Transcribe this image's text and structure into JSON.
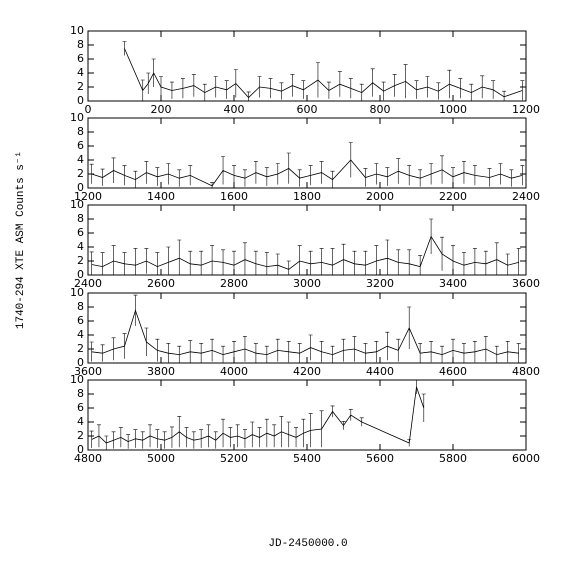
{
  "y_label": "1740-294 XTE ASM Counts s⁻¹",
  "x_label": "JD-2450000.0",
  "chart_data": [
    {
      "type": "line",
      "xlim": [
        0,
        1200
      ],
      "xticks": [
        0,
        200,
        400,
        600,
        800,
        1000,
        1200
      ],
      "ylim": [
        0,
        10
      ],
      "yticks": [
        0,
        2,
        4,
        6,
        8,
        10
      ],
      "series": [
        {
          "color": "#000000",
          "x": [
            100,
            150,
            165,
            180,
            200,
            230,
            260,
            290,
            320,
            350,
            380,
            405,
            440,
            470,
            500,
            530,
            560,
            590,
            630,
            660,
            690,
            720,
            750,
            780,
            810,
            840,
            870,
            900,
            930,
            960,
            990,
            1020,
            1050,
            1080,
            1110,
            1140,
            1190
          ],
          "values": [
            7.5,
            1.5,
            2.5,
            4,
            2,
            1.5,
            1.8,
            2.2,
            1.2,
            2,
            1.6,
            2.5,
            0.5,
            2,
            1.8,
            1.4,
            2.2,
            1.6,
            3,
            1.5,
            2.4,
            1.8,
            1.2,
            2.6,
            1.4,
            2.2,
            2.8,
            1.6,
            2,
            1.4,
            2.4,
            1.8,
            1.2,
            2,
            1.6,
            0.6,
            1.5
          ],
          "errors": [
            1,
            1.5,
            1.5,
            2,
            1.5,
            1.2,
            1.4,
            1.6,
            1.2,
            1.5,
            1.3,
            2,
            0.8,
            1.5,
            1.4,
            1.2,
            1.6,
            1.3,
            2.5,
            1.2,
            1.8,
            1.4,
            1.2,
            2,
            1.3,
            1.6,
            2.4,
            1.3,
            1.5,
            1.2,
            2,
            1.4,
            1.2,
            1.6,
            1.3,
            0.8,
            1.4
          ]
        }
      ]
    },
    {
      "type": "line",
      "xlim": [
        1200,
        2400
      ],
      "xticks": [
        1200,
        1400,
        1600,
        1800,
        2000,
        2200,
        2400
      ],
      "ylim": [
        0,
        10
      ],
      "yticks": [
        0,
        2,
        4,
        6,
        8,
        10
      ],
      "series": [
        {
          "color": "#000000",
          "x": [
            1210,
            1240,
            1270,
            1300,
            1330,
            1360,
            1390,
            1420,
            1450,
            1480,
            1540,
            1570,
            1600,
            1630,
            1660,
            1690,
            1720,
            1750,
            1780,
            1810,
            1840,
            1870,
            1920,
            1960,
            1990,
            2020,
            2050,
            2080,
            2110,
            2140,
            2170,
            2200,
            2230,
            2260,
            2300,
            2330,
            2360,
            2390
          ],
          "values": [
            2,
            1.5,
            2.5,
            1.8,
            1.2,
            2.2,
            1.6,
            2,
            1.4,
            1.8,
            0.3,
            2.5,
            1.8,
            1.4,
            2.2,
            1.6,
            2,
            2.8,
            1.4,
            1.8,
            2.2,
            1.2,
            4,
            1.5,
            2,
            1.6,
            2.4,
            1.8,
            1.4,
            2,
            2.6,
            1.6,
            2.2,
            1.8,
            1.5,
            2,
            1.4,
            1.8
          ],
          "errors": [
            1.4,
            1.2,
            1.8,
            1.4,
            1.2,
            1.6,
            1.3,
            1.5,
            1.2,
            1.4,
            0.5,
            2,
            1.4,
            1.2,
            1.6,
            1.3,
            1.5,
            2.2,
            1.2,
            1.4,
            1.6,
            1.2,
            2.5,
            1.3,
            1.5,
            1.3,
            1.8,
            1.4,
            1.2,
            1.5,
            2,
            1.3,
            1.6,
            1.4,
            1.3,
            1.5,
            1.2,
            1.4
          ]
        }
      ]
    },
    {
      "type": "line",
      "xlim": [
        2400,
        3600
      ],
      "xticks": [
        2400,
        2600,
        2800,
        3000,
        3200,
        3400,
        3600
      ],
      "ylim": [
        0,
        10
      ],
      "yticks": [
        0,
        2,
        4,
        6,
        8,
        10
      ],
      "series": [
        {
          "color": "#000000",
          "x": [
            2410,
            2440,
            2470,
            2500,
            2530,
            2560,
            2590,
            2620,
            2650,
            2680,
            2710,
            2740,
            2770,
            2800,
            2830,
            2860,
            2890,
            2920,
            2950,
            2980,
            3010,
            3040,
            3070,
            3100,
            3130,
            3160,
            3190,
            3220,
            3250,
            3280,
            3310,
            3340,
            3370,
            3400,
            3430,
            3460,
            3490,
            3520,
            3550,
            3580
          ],
          "values": [
            1.5,
            1.2,
            2,
            1.6,
            1.4,
            2,
            1.2,
            1.8,
            2.4,
            1.6,
            1.4,
            2,
            1.8,
            1.4,
            2.2,
            1.6,
            1.2,
            1.4,
            0.8,
            2,
            1.6,
            1.8,
            1.4,
            2.2,
            1.6,
            1.4,
            2,
            2.4,
            1.8,
            1.6,
            1.2,
            5.5,
            3,
            2,
            1.4,
            1.8,
            1.6,
            2.2,
            1.4,
            1.8
          ],
          "errors": [
            1.8,
            2,
            2.2,
            1.6,
            2.4,
            1.8,
            2,
            2.2,
            2.6,
            1.8,
            2,
            2.2,
            1.8,
            2,
            2.4,
            1.8,
            2,
            1.6,
            1.2,
            2.2,
            1.8,
            2,
            2.4,
            2.2,
            1.8,
            2,
            2.2,
            2.6,
            1.8,
            2,
            1.6,
            2.5,
            2.4,
            2.2,
            1.8,
            2,
            1.8,
            2.4,
            1.6,
            2
          ]
        }
      ]
    },
    {
      "type": "line",
      "xlim": [
        3600,
        4800
      ],
      "xticks": [
        3600,
        3800,
        4000,
        4200,
        4400,
        4600,
        4800
      ],
      "ylim": [
        0,
        10
      ],
      "yticks": [
        0,
        2,
        4,
        6,
        8,
        10
      ],
      "series": [
        {
          "color": "#000000",
          "x": [
            3610,
            3640,
            3670,
            3700,
            3730,
            3760,
            3790,
            3820,
            3850,
            3880,
            3910,
            3940,
            3970,
            4000,
            4030,
            4060,
            4090,
            4120,
            4150,
            4180,
            4210,
            4240,
            4270,
            4300,
            4330,
            4360,
            4390,
            4420,
            4450,
            4480,
            4510,
            4540,
            4570,
            4600,
            4630,
            4660,
            4690,
            4720,
            4750,
            4780
          ],
          "values": [
            1.6,
            1.4,
            2,
            2.4,
            7.5,
            3,
            1.8,
            1.4,
            1.2,
            1.6,
            1.4,
            1.8,
            1.2,
            1.6,
            2,
            1.4,
            1.2,
            1.8,
            1.6,
            1.4,
            2.2,
            1.6,
            1.2,
            1.8,
            2,
            1.4,
            1.6,
            2.4,
            1.8,
            5,
            1.4,
            1.6,
            1.2,
            1.8,
            1.4,
            1.6,
            2,
            1.2,
            1.6,
            1.4
          ],
          "errors": [
            1.4,
            1.2,
            1.6,
            1.8,
            2.2,
            2,
            1.6,
            1.4,
            1.2,
            1.6,
            1.4,
            1.6,
            1.2,
            1.5,
            1.8,
            1.4,
            1.2,
            1.6,
            1.5,
            1.4,
            1.8,
            1.5,
            1.2,
            1.6,
            1.8,
            1.4,
            1.5,
            2,
            1.6,
            3,
            1.4,
            1.5,
            1.2,
            1.6,
            1.4,
            1.5,
            1.8,
            1.2,
            1.5,
            1.4
          ]
        }
      ]
    },
    {
      "type": "line",
      "xlim": [
        4800,
        6000
      ],
      "xticks": [
        4800,
        5000,
        5200,
        5400,
        5600,
        5800,
        6000
      ],
      "ylim": [
        0,
        10
      ],
      "yticks": [
        0,
        2,
        4,
        6,
        8,
        10
      ],
      "series": [
        {
          "color": "#000000",
          "x": [
            4810,
            4830,
            4850,
            4870,
            4890,
            4910,
            4930,
            4950,
            4970,
            4990,
            5010,
            5030,
            5050,
            5070,
            5090,
            5110,
            5130,
            5150,
            5170,
            5190,
            5210,
            5230,
            5250,
            5270,
            5290,
            5310,
            5330,
            5350,
            5370,
            5390,
            5410,
            5440,
            5470,
            5500,
            5520,
            5550,
            5680,
            5700,
            5720
          ],
          "values": [
            1.5,
            2,
            1,
            1.4,
            1.8,
            1.2,
            1.6,
            1.4,
            2,
            1.6,
            1.4,
            1.8,
            2.6,
            1.8,
            1.4,
            1.6,
            2,
            1.4,
            2.4,
            1.8,
            2,
            1.6,
            2.2,
            1.8,
            2.4,
            2,
            2.6,
            2.2,
            1.8,
            2.4,
            2.8,
            3,
            5.5,
            3.5,
            5,
            4,
            1,
            9,
            6
          ],
          "errors": [
            1.2,
            1.6,
            1,
            1.2,
            1.4,
            1,
            1.3,
            1.2,
            1.6,
            1.3,
            1.2,
            1.5,
            2.2,
            1.4,
            1.2,
            1.3,
            1.6,
            1.2,
            2,
            1.4,
            1.6,
            1.3,
            1.8,
            1.4,
            2,
            1.6,
            2.2,
            1.8,
            1.4,
            2,
            2.4,
            2.6,
            0.8,
            0.6,
            0.8,
            0.6,
            0.5,
            1,
            2
          ]
        }
      ]
    }
  ]
}
